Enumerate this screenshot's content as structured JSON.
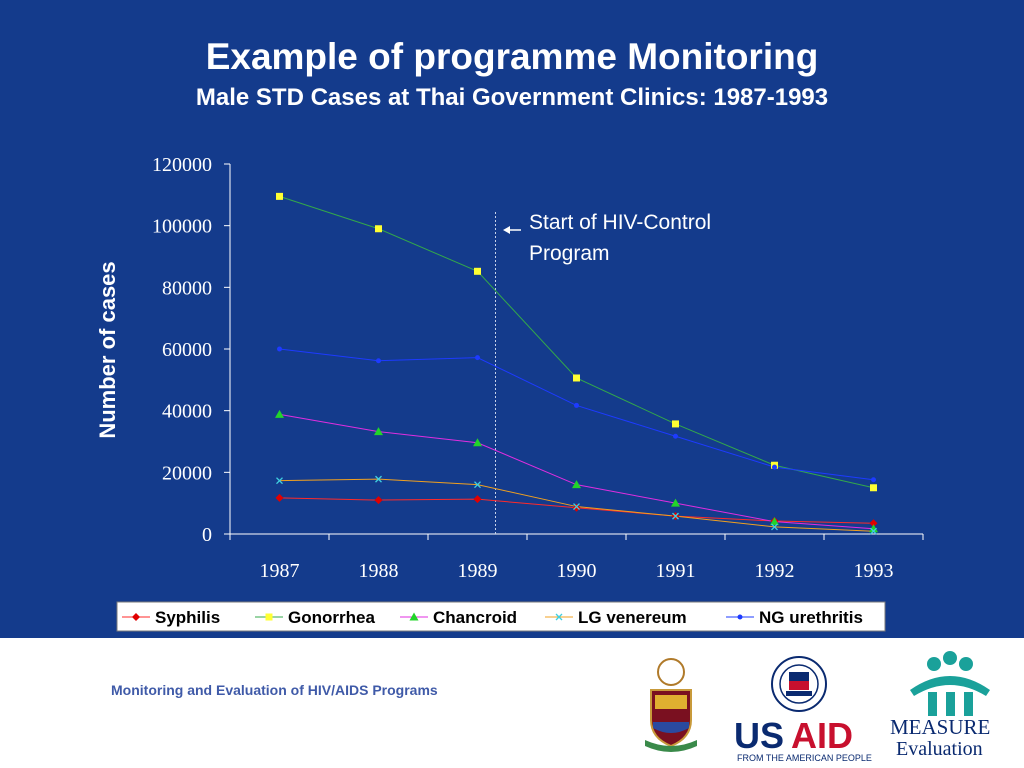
{
  "slide": {
    "title": "Example of programme Monitoring",
    "subtitle": "Male STD Cases at Thai Government Clinics: 1987-1993",
    "background": "#143b8c"
  },
  "annotation": {
    "line1": "Start of HIV-Control",
    "line2": "Program"
  },
  "footer": {
    "text": "Monitoring and Evaluation of HIV/AIDS Programs",
    "usaid_tagline": "FROM THE AMERICAN PEOPLE"
  },
  "logos": {
    "usaid_us": "US",
    "usaid_aid": "AID",
    "measure": "MEASURE",
    "evaluation": "Evaluation",
    "icons": [
      "university-crest-icon",
      "usaid-seal-icon",
      "measure-people-icon"
    ]
  },
  "chart_data": {
    "type": "line",
    "title": "",
    "xlabel": "",
    "ylabel": "Number of cases",
    "categories": [
      "1987",
      "1988",
      "1989",
      "1990",
      "1991",
      "1992",
      "1993"
    ],
    "yticks": [
      "0",
      "20000",
      "40000",
      "60000",
      "80000",
      "100000",
      "120000"
    ],
    "ylim": [
      0,
      120000
    ],
    "grid": false,
    "legend_position": "bottom",
    "marker_line": "1989",
    "series": [
      {
        "name": "Syphilis",
        "values": [
          11700,
          11000,
          11300,
          8500,
          5800,
          4200,
          3500
        ],
        "line_color": "#ff2a2a",
        "marker_color": "#e00000",
        "marker": "diamond"
      },
      {
        "name": "Gonorrhea",
        "values": [
          109500,
          99000,
          85200,
          50600,
          35700,
          22300,
          15000
        ],
        "line_color": "#33a84a",
        "marker_color": "#ffff33",
        "marker": "square"
      },
      {
        "name": "Chancroid",
        "values": [
          38800,
          33200,
          29600,
          16000,
          10000,
          4000,
          1700
        ],
        "line_color": "#e02ee0",
        "marker_color": "#22d42a",
        "marker": "triangle"
      },
      {
        "name": "LG venereum",
        "values": [
          17300,
          17800,
          16000,
          8900,
          5800,
          2300,
          900
        ],
        "line_color": "#f0a020",
        "marker_color": "#40d0e0",
        "marker": "x"
      },
      {
        "name": "NG urethritis",
        "values": [
          60000,
          56200,
          57200,
          41700,
          31700,
          21700,
          17600
        ],
        "line_color": "#1d3bff",
        "marker_color": "#1d3bff",
        "marker": "dot"
      }
    ]
  }
}
